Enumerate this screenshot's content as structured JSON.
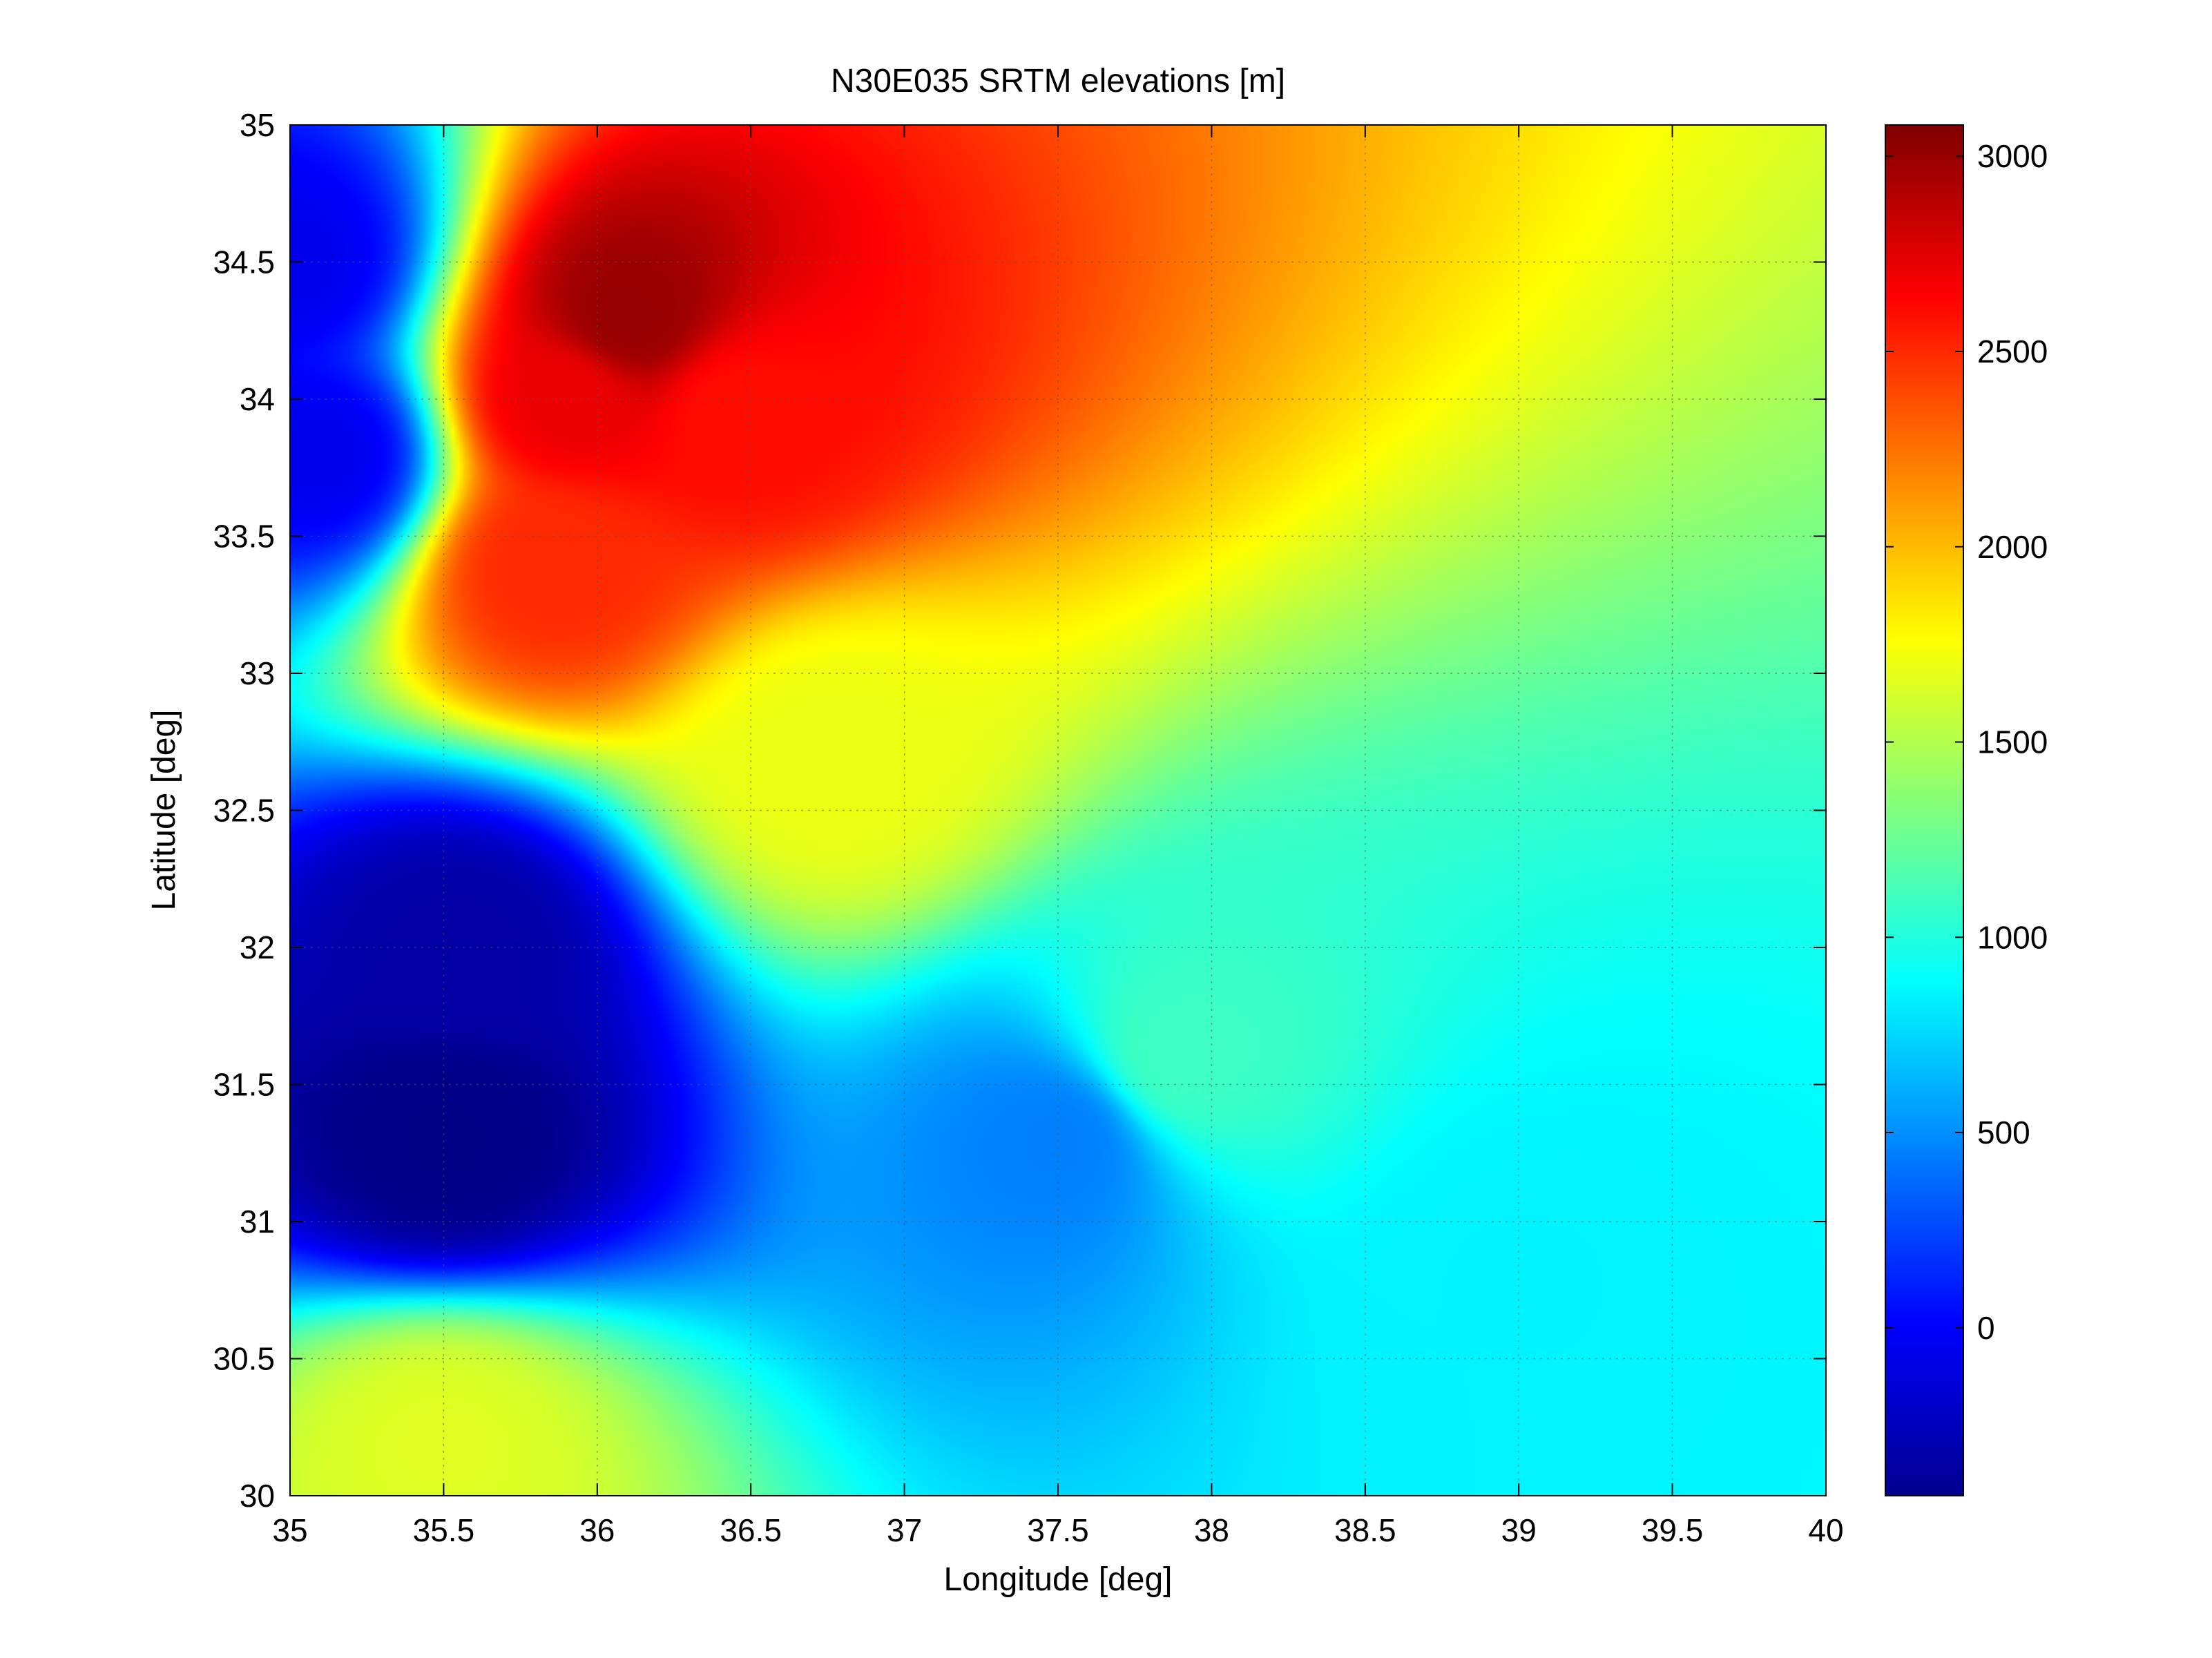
{
  "chart_data": {
    "type": "heatmap",
    "title": "N30E035 SRTM elevations [m]",
    "xlabel": "Longitude [deg]",
    "ylabel": "Latitude [deg]",
    "xlim": [
      35,
      40
    ],
    "ylim": [
      30,
      35
    ],
    "x_ticks": [
      35,
      35.5,
      36,
      36.5,
      37,
      37.5,
      38,
      38.5,
      39,
      39.5,
      40
    ],
    "y_ticks": [
      30,
      30.5,
      31,
      31.5,
      32,
      32.5,
      33,
      33.5,
      34,
      34.5,
      35
    ],
    "x_tick_labels": [
      "35",
      "35.5",
      "36",
      "36.5",
      "37",
      "37.5",
      "38",
      "38.5",
      "39",
      "39.5",
      "40"
    ],
    "y_tick_labels": [
      "30",
      "30.5",
      "31",
      "31.5",
      "32",
      "32.5",
      "33",
      "33.5",
      "34",
      "34.5",
      "35"
    ],
    "grid": true,
    "colormap": "jet",
    "colorbar": {
      "range": [
        -430,
        3080
      ],
      "ticks": [
        0,
        500,
        1000,
        1500,
        2000,
        2500,
        3000
      ],
      "tick_labels": [
        "0",
        "500",
        "1000",
        "1500",
        "2000",
        "2500",
        "3000"
      ],
      "placement": "right"
    },
    "features": [
      {
        "lon": 35.0,
        "lat": 34.5,
        "elevation": -50
      },
      {
        "lon": 35.1,
        "lat": 33.8,
        "elevation": -50
      },
      {
        "lon": 35.5,
        "lat": 31.3,
        "elevation": -410
      },
      {
        "lon": 35.55,
        "lat": 32.0,
        "elevation": -300
      },
      {
        "lon": 36.1,
        "lat": 34.3,
        "elevation": 3000
      },
      {
        "lon": 35.9,
        "lat": 34.0,
        "elevation": 2700
      },
      {
        "lon": 36.45,
        "lat": 33.95,
        "elevation": 2600
      },
      {
        "lon": 35.85,
        "lat": 33.4,
        "elevation": 2500
      },
      {
        "lon": 36.75,
        "lat": 32.7,
        "elevation": 1700
      },
      {
        "lon": 35.5,
        "lat": 30.2,
        "elevation": 1650
      },
      {
        "lon": 37.9,
        "lat": 31.6,
        "elevation": 1100
      },
      {
        "lon": 39.0,
        "lat": 30.8,
        "elevation": 850
      },
      {
        "lon": 37.5,
        "lat": 31.3,
        "elevation": 450
      }
    ]
  }
}
